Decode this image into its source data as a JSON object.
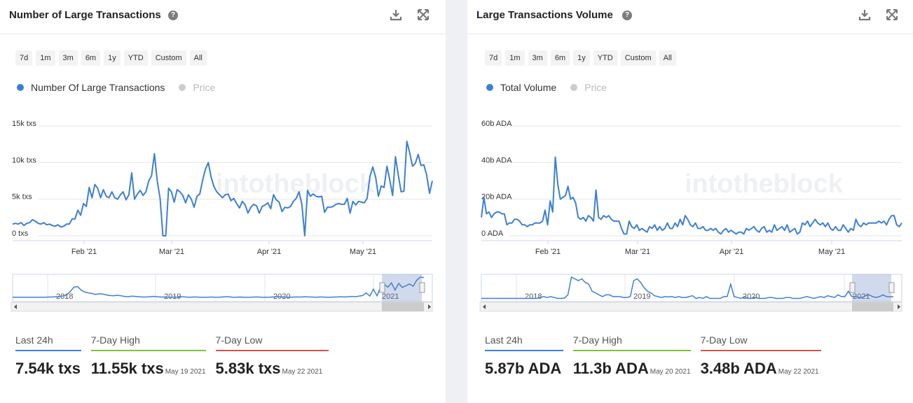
{
  "panels": [
    {
      "title": "Number of Large Transactions",
      "ranges": [
        "7d",
        "1m",
        "3m",
        "6m",
        "1y",
        "YTD",
        "Custom",
        "All"
      ],
      "legend": [
        {
          "label": "Number Of Large Transactions",
          "color": "#3d7fd6",
          "active": true
        },
        {
          "label": "Price",
          "color": "#cccccc",
          "active": false
        }
      ],
      "chart_data": {
        "type": "line",
        "y_ticks": [
          "0 txs",
          "5k txs",
          "10k txs",
          "15k txs"
        ],
        "ylim": [
          0,
          15000
        ],
        "x_ticks": [
          "Feb '21",
          "Mar '21",
          "Apr '21",
          "May '21"
        ],
        "navigator_labels": [
          "2018",
          "2019",
          "2020",
          "2021"
        ],
        "series": [
          {
            "name": "Number Of Large Transactions",
            "values": [
              1600,
              1700,
              1600,
              1800,
              1400,
              1700,
              1800,
              2200,
              2000,
              1700,
              1600,
              1800,
              1500,
              1600,
              1400,
              1300,
              1500,
              1200,
              1300,
              1600,
              1600,
              2300,
              2300,
              3500,
              2800,
              4400,
              4000,
              6600,
              5200,
              7000,
              6500,
              5200,
              6300,
              5400,
              5200,
              6000,
              5200,
              5000,
              5600,
              6000,
              4900,
              5600,
              8600,
              5000,
              5700,
              6200,
              5500,
              6000,
              7500,
              8200,
              11200,
              7500,
              5100,
              0,
              0,
              6500,
              6000,
              4600,
              6300,
              6000,
              5500,
              4500,
              5600,
              5000,
              3900,
              5400,
              5700,
              7600,
              9100,
              10000,
              8000,
              6700,
              6000,
              5600,
              5200,
              5600,
              5700,
              4800,
              5100,
              4400,
              3800,
              4700,
              4200,
              3100,
              3900,
              4300,
              4100,
              3100,
              4000,
              4200,
              4500,
              3700,
              5600,
              4900,
              4600,
              3300,
              3900,
              3800,
              4000,
              4700,
              5100,
              6000,
              4300,
              0,
              6200,
              5400,
              5700,
              5400,
              5300,
              5400,
              3200,
              3900,
              3900,
              4000,
              4300,
              4400,
              4300,
              4300,
              5100,
              3100,
              4700,
              4200,
              4700,
              4600,
              4500,
              5100,
              8100,
              9400,
              8000,
              5400,
              6800,
              6600,
              9500,
              7600,
              5500,
              10800,
              8300,
              6000,
              6100,
              12900,
              11400,
              9500,
              9900,
              11100,
              9600,
              9700,
              8300,
              5800,
              7500
            ]
          }
        ],
        "navigator_values": [
          1000,
          1000,
          1000,
          1000,
          1000,
          1000,
          1000,
          1000,
          1000,
          1000,
          1100,
          1100,
          1200,
          1200,
          1500,
          1800,
          3000,
          4500,
          4700,
          3500,
          2800,
          2500,
          2300,
          2000,
          2200,
          2100,
          1800,
          1600,
          1500,
          1700,
          1500,
          1300,
          1200,
          1400,
          1300,
          1200,
          1100,
          1100,
          1200,
          1300,
          1200,
          1100,
          1100,
          1000,
          1000,
          1100,
          1000,
          1200,
          1100,
          1000,
          1100,
          1100,
          1000,
          1000,
          1000,
          1100,
          1000,
          1000,
          1100,
          1200,
          1200,
          1000,
          1000,
          1100,
          1000,
          1000,
          1000,
          1100,
          1100,
          1000,
          1000,
          1000,
          1100,
          1200,
          1200,
          1100,
          1000,
          1000,
          1100,
          1100,
          1100,
          1200,
          1100,
          1100,
          1000,
          1100,
          1100,
          1000,
          1000,
          1100,
          1100,
          1200,
          1100,
          1200,
          1300,
          1200,
          1400,
          1600,
          2500,
          1400,
          3800,
          1500,
          4500,
          5500,
          4500,
          6000,
          3500,
          5800,
          4400,
          5000,
          5600,
          4800,
          6900,
          8000,
          7800
        ]
      },
      "stats": [
        {
          "label": "Last 24h",
          "value": "7.54k txs",
          "date": "",
          "color": "#3d7fd6"
        },
        {
          "label": "7-Day High",
          "value": "11.55k txs",
          "date": "May 19 2021",
          "color": "#7ec23b"
        },
        {
          "label": "7-Day Low",
          "value": "5.83k txs",
          "date": "May 22 2021",
          "color": "#d9534f"
        }
      ]
    },
    {
      "title": "Large Transactions Volume",
      "ranges": [
        "7d",
        "1m",
        "3m",
        "6m",
        "1y",
        "YTD",
        "Custom",
        "All"
      ],
      "legend": [
        {
          "label": "Total Volume",
          "color": "#3d7fd6",
          "active": true
        },
        {
          "label": "Price",
          "color": "#cccccc",
          "active": false
        }
      ],
      "chart_data": {
        "type": "line",
        "y_ticks": [
          "0 ADA",
          "20b ADA",
          "40b ADA",
          "60b ADA"
        ],
        "ylim": [
          0,
          60
        ],
        "x_ticks": [
          "Feb '21",
          "Mar '21",
          "Apr '21",
          "May '21"
        ],
        "navigator_labels": [
          "2018",
          "2019",
          "2020",
          "2021"
        ],
        "series": [
          {
            "name": "Total Volume",
            "values": [
              10,
              21,
              12,
              13,
              10,
              12,
              13,
              13,
              12,
              12,
              6,
              7,
              7,
              9,
              9,
              8,
              6,
              6,
              5,
              6,
              6,
              7,
              7,
              7,
              8,
              14,
              6,
              19,
              13,
              43,
              28,
              20,
              21,
              22,
              27,
              20,
              21,
              18,
              10,
              9,
              10,
              8,
              11,
              10,
              8,
              25,
              10,
              9,
              11,
              10,
              11,
              9,
              8,
              8,
              8,
              4,
              1,
              1,
              8,
              5,
              4,
              6,
              3,
              4,
              3,
              2,
              5,
              4,
              6,
              3,
              5,
              3,
              4,
              7,
              4,
              4,
              7,
              5,
              9,
              6,
              11,
              9,
              6,
              5,
              7,
              4,
              4,
              5,
              3,
              3,
              4,
              3,
              4,
              2,
              1,
              3,
              4,
              2,
              3,
              2,
              1,
              2,
              2,
              1,
              4,
              3,
              4,
              5,
              3,
              2,
              4,
              5,
              2,
              3,
              2,
              6,
              3,
              4,
              5,
              3,
              6,
              2,
              3,
              4,
              1,
              2,
              7,
              6,
              8,
              5,
              7,
              9,
              7,
              6,
              7,
              5,
              7,
              4,
              3,
              5,
              3,
              3,
              6,
              4,
              2,
              4,
              3,
              9,
              6,
              5,
              7,
              6,
              7,
              7,
              7,
              7,
              8,
              7,
              8,
              6,
              9,
              11,
              11,
              6,
              5,
              7
            ]
          }
        ],
        "navigator_values": [
          1,
          1,
          1,
          1,
          1,
          1,
          1,
          1,
          1,
          1,
          1,
          1,
          1,
          1,
          1,
          1,
          1,
          1.5,
          2,
          1.5,
          2,
          1.5,
          1,
          1,
          1.2,
          3,
          13,
          12,
          11,
          12,
          10,
          9,
          5,
          4,
          3,
          2,
          3,
          3,
          2,
          2,
          2,
          1.5,
          1.5,
          2,
          11,
          12,
          10,
          7,
          5,
          4,
          2.5,
          2,
          1.5,
          2,
          1.8,
          2,
          1.5,
          2,
          1.5,
          1.5,
          2,
          2.5,
          1,
          1.5,
          1,
          2,
          1,
          1,
          1,
          1,
          2,
          2,
          9,
          2,
          1.5,
          1,
          2,
          1,
          1,
          1.5,
          1,
          1,
          1,
          1.5,
          1.5,
          1,
          1,
          1,
          1.5,
          1.5,
          1,
          1,
          1,
          1.5,
          2,
          1.5,
          1,
          1.5,
          2,
          1.5,
          2.5,
          2,
          1.5,
          3,
          2,
          2,
          5,
          2,
          2,
          1.5,
          1.5,
          2.5,
          3,
          2,
          1.5,
          2,
          3,
          2,
          1.8,
          2
        ]
      },
      "stats": [
        {
          "label": "Last 24h",
          "value": "5.87b ADA",
          "date": "",
          "color": "#3d7fd6"
        },
        {
          "label": "7-Day High",
          "value": "11.3b ADA",
          "date": "May 20 2021",
          "color": "#7ec23b"
        },
        {
          "label": "7-Day Low",
          "value": "3.48b ADA",
          "date": "May 22 2021",
          "color": "#d9534f"
        }
      ]
    }
  ],
  "watermark": "intotheblock"
}
